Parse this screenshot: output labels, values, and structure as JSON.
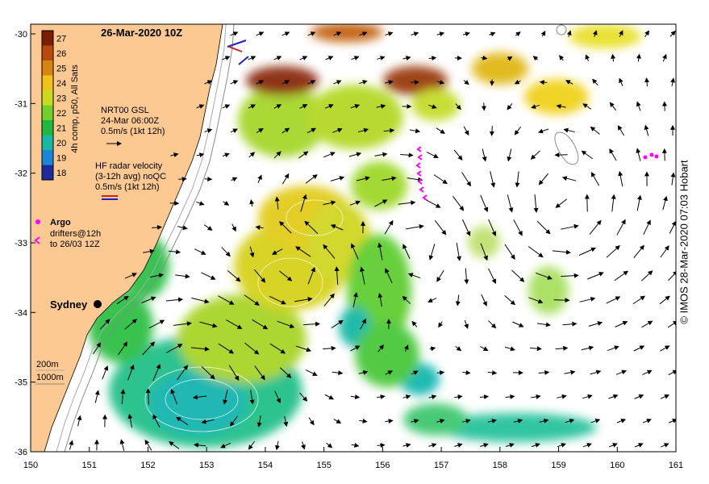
{
  "title": "26-Mar-2020 10Z",
  "credit": "© IMOS 28-Mar-2020 07:03 Hobart",
  "colorbar": {
    "label": "4h comp, p50, All Sats",
    "ticks": [
      "27",
      "26",
      "25",
      "24",
      "23",
      "22",
      "21",
      "20",
      "19",
      "18"
    ],
    "colors": [
      "#7a1e06",
      "#b84a0c",
      "#d9840f",
      "#f0c21a",
      "#c8dc1e",
      "#6fd12a",
      "#20b840",
      "#16b8a6",
      "#1a86d8",
      "#1a2c9c"
    ]
  },
  "legend_gsl": {
    "line1": "NRT00 GSL",
    "line2": "24-Mar 06:00Z",
    "line3": "0.5m/s (1kt 12h)"
  },
  "legend_hf": {
    "line1": "HF radar velocity",
    "line2": "(3-12h avg) noQC",
    "line3": "0.5m/s (1kt 12h)"
  },
  "legend_argo": {
    "argo": "Argo",
    "drifters1": "drifters@12h",
    "drifters2": "to 26/03 12Z",
    "color": "#ff00ff"
  },
  "city": "Sydney",
  "depth": {
    "d200": "200m",
    "d1000": "1000m"
  },
  "x_ticks": [
    "150",
    "151",
    "152",
    "153",
    "154",
    "155",
    "156",
    "157",
    "158",
    "159",
    "160",
    "161"
  ],
  "y_ticks": [
    "-30",
    "-31",
    "-32",
    "-33",
    "-34",
    "-35",
    "-36"
  ],
  "colors": {
    "land": "#fcc993",
    "ocean": "#ffffff"
  }
}
